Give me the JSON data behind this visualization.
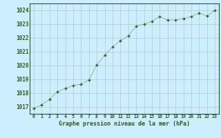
{
  "x": [
    0,
    1,
    2,
    3,
    4,
    5,
    6,
    7,
    8,
    9,
    10,
    11,
    12,
    13,
    14,
    15,
    16,
    17,
    18,
    19,
    20,
    21,
    22,
    23
  ],
  "y": [
    1016.9,
    1017.15,
    1017.55,
    1018.1,
    1018.35,
    1018.55,
    1018.65,
    1018.95,
    1020.05,
    1020.75,
    1021.35,
    1021.8,
    1022.15,
    1022.85,
    1023.0,
    1023.2,
    1023.55,
    1023.3,
    1023.3,
    1023.4,
    1023.55,
    1023.8,
    1023.6,
    1024.0
  ],
  "ylim": [
    1016.5,
    1024.5
  ],
  "yticks": [
    1017,
    1018,
    1019,
    1020,
    1021,
    1022,
    1023,
    1024
  ],
  "xlim": [
    -0.5,
    23.5
  ],
  "xticks": [
    0,
    1,
    2,
    3,
    4,
    5,
    6,
    7,
    8,
    9,
    10,
    11,
    12,
    13,
    14,
    15,
    16,
    17,
    18,
    19,
    20,
    21,
    22,
    23
  ],
  "xlabel": "Graphe pression niveau de la mer (hPa)",
  "line_color": "#2d5a1b",
  "marker_color": "#2d5a1b",
  "bg_color": "#cceeff",
  "grid_color": "#aacccc",
  "tick_label_color": "#2d5a1b",
  "xlabel_color": "#2d5a1b",
  "outer_bg": "#cceeff"
}
